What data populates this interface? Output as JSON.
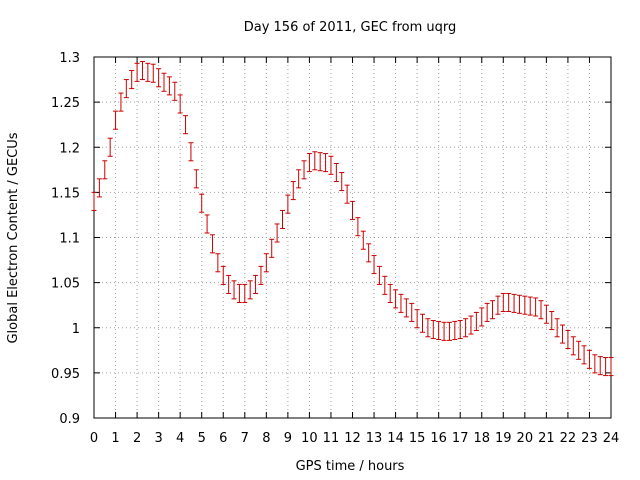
{
  "chart_data": {
    "type": "scatter",
    "title": "Day 156 of 2011, GEC from uqrg",
    "xlabel": "GPS time / hours",
    "ylabel": "Global Electron Content / GECUs",
    "xlim": [
      0,
      24
    ],
    "ylim": [
      0.9,
      1.3
    ],
    "xticks": [
      "0",
      "1",
      "2",
      "3",
      "4",
      "5",
      "6",
      "7",
      "8",
      "9",
      "10",
      "11",
      "12",
      "13",
      "14",
      "15",
      "16",
      "17",
      "18",
      "19",
      "20",
      "21",
      "22",
      "23",
      "24"
    ],
    "yticks": [
      "0.9",
      "0.95",
      "1",
      "1.05",
      "1.1",
      "1.15",
      "1.2",
      "1.25",
      "1.3"
    ],
    "grid": true,
    "legend": "none",
    "error_bar": 0.01,
    "colors": {
      "series": "#cc0000",
      "grid": "#a0a0a0",
      "axes": "#000000"
    },
    "series": [
      {
        "x": [
          0.0,
          0.25,
          0.5,
          0.75,
          1.0,
          1.25,
          1.5,
          1.75,
          2.0,
          2.25,
          2.5,
          2.75,
          3.0,
          3.25,
          3.5,
          3.75,
          4.0,
          4.25,
          4.5,
          4.75,
          5.0,
          5.25,
          5.5,
          5.75,
          6.0,
          6.25,
          6.5,
          6.75,
          7.0,
          7.25,
          7.5,
          7.75,
          8.0,
          8.25,
          8.5,
          8.75,
          9.0,
          9.25,
          9.5,
          9.75,
          10.0,
          10.25,
          10.5,
          10.75,
          11.0,
          11.25,
          11.5,
          11.75,
          12.0,
          12.25,
          12.5,
          12.75,
          13.0,
          13.25,
          13.5,
          13.75,
          14.0,
          14.25,
          14.5,
          14.75,
          15.0,
          15.25,
          15.5,
          15.75,
          16.0,
          16.25,
          16.5,
          16.75,
          17.0,
          17.25,
          17.5,
          17.75,
          18.0,
          18.25,
          18.5,
          18.75,
          19.0,
          19.25,
          19.5,
          19.75,
          20.0,
          20.25,
          20.5,
          20.75,
          21.0,
          21.25,
          21.5,
          21.75,
          22.0,
          22.25,
          22.5,
          22.75,
          23.0,
          23.25,
          23.5,
          23.75,
          24.0
        ],
        "y": [
          1.14,
          1.155,
          1.175,
          1.2,
          1.23,
          1.25,
          1.265,
          1.275,
          1.283,
          1.285,
          1.283,
          1.282,
          1.277,
          1.272,
          1.268,
          1.262,
          1.248,
          1.225,
          1.195,
          1.165,
          1.138,
          1.115,
          1.093,
          1.072,
          1.058,
          1.048,
          1.042,
          1.038,
          1.038,
          1.042,
          1.048,
          1.058,
          1.072,
          1.088,
          1.105,
          1.12,
          1.137,
          1.152,
          1.165,
          1.175,
          1.183,
          1.185,
          1.184,
          1.183,
          1.18,
          1.172,
          1.162,
          1.148,
          1.13,
          1.112,
          1.097,
          1.083,
          1.07,
          1.058,
          1.047,
          1.038,
          1.032,
          1.027,
          1.022,
          1.017,
          1.01,
          1.005,
          1.0,
          0.998,
          0.997,
          0.996,
          0.996,
          0.997,
          0.998,
          1.0,
          1.003,
          1.007,
          1.012,
          1.017,
          1.02,
          1.025,
          1.028,
          1.028,
          1.027,
          1.026,
          1.025,
          1.024,
          1.023,
          1.02,
          1.015,
          1.008,
          1.0,
          0.993,
          0.987,
          0.98,
          0.975,
          0.97,
          0.965,
          0.96,
          0.958,
          0.957,
          0.957
        ]
      }
    ]
  }
}
